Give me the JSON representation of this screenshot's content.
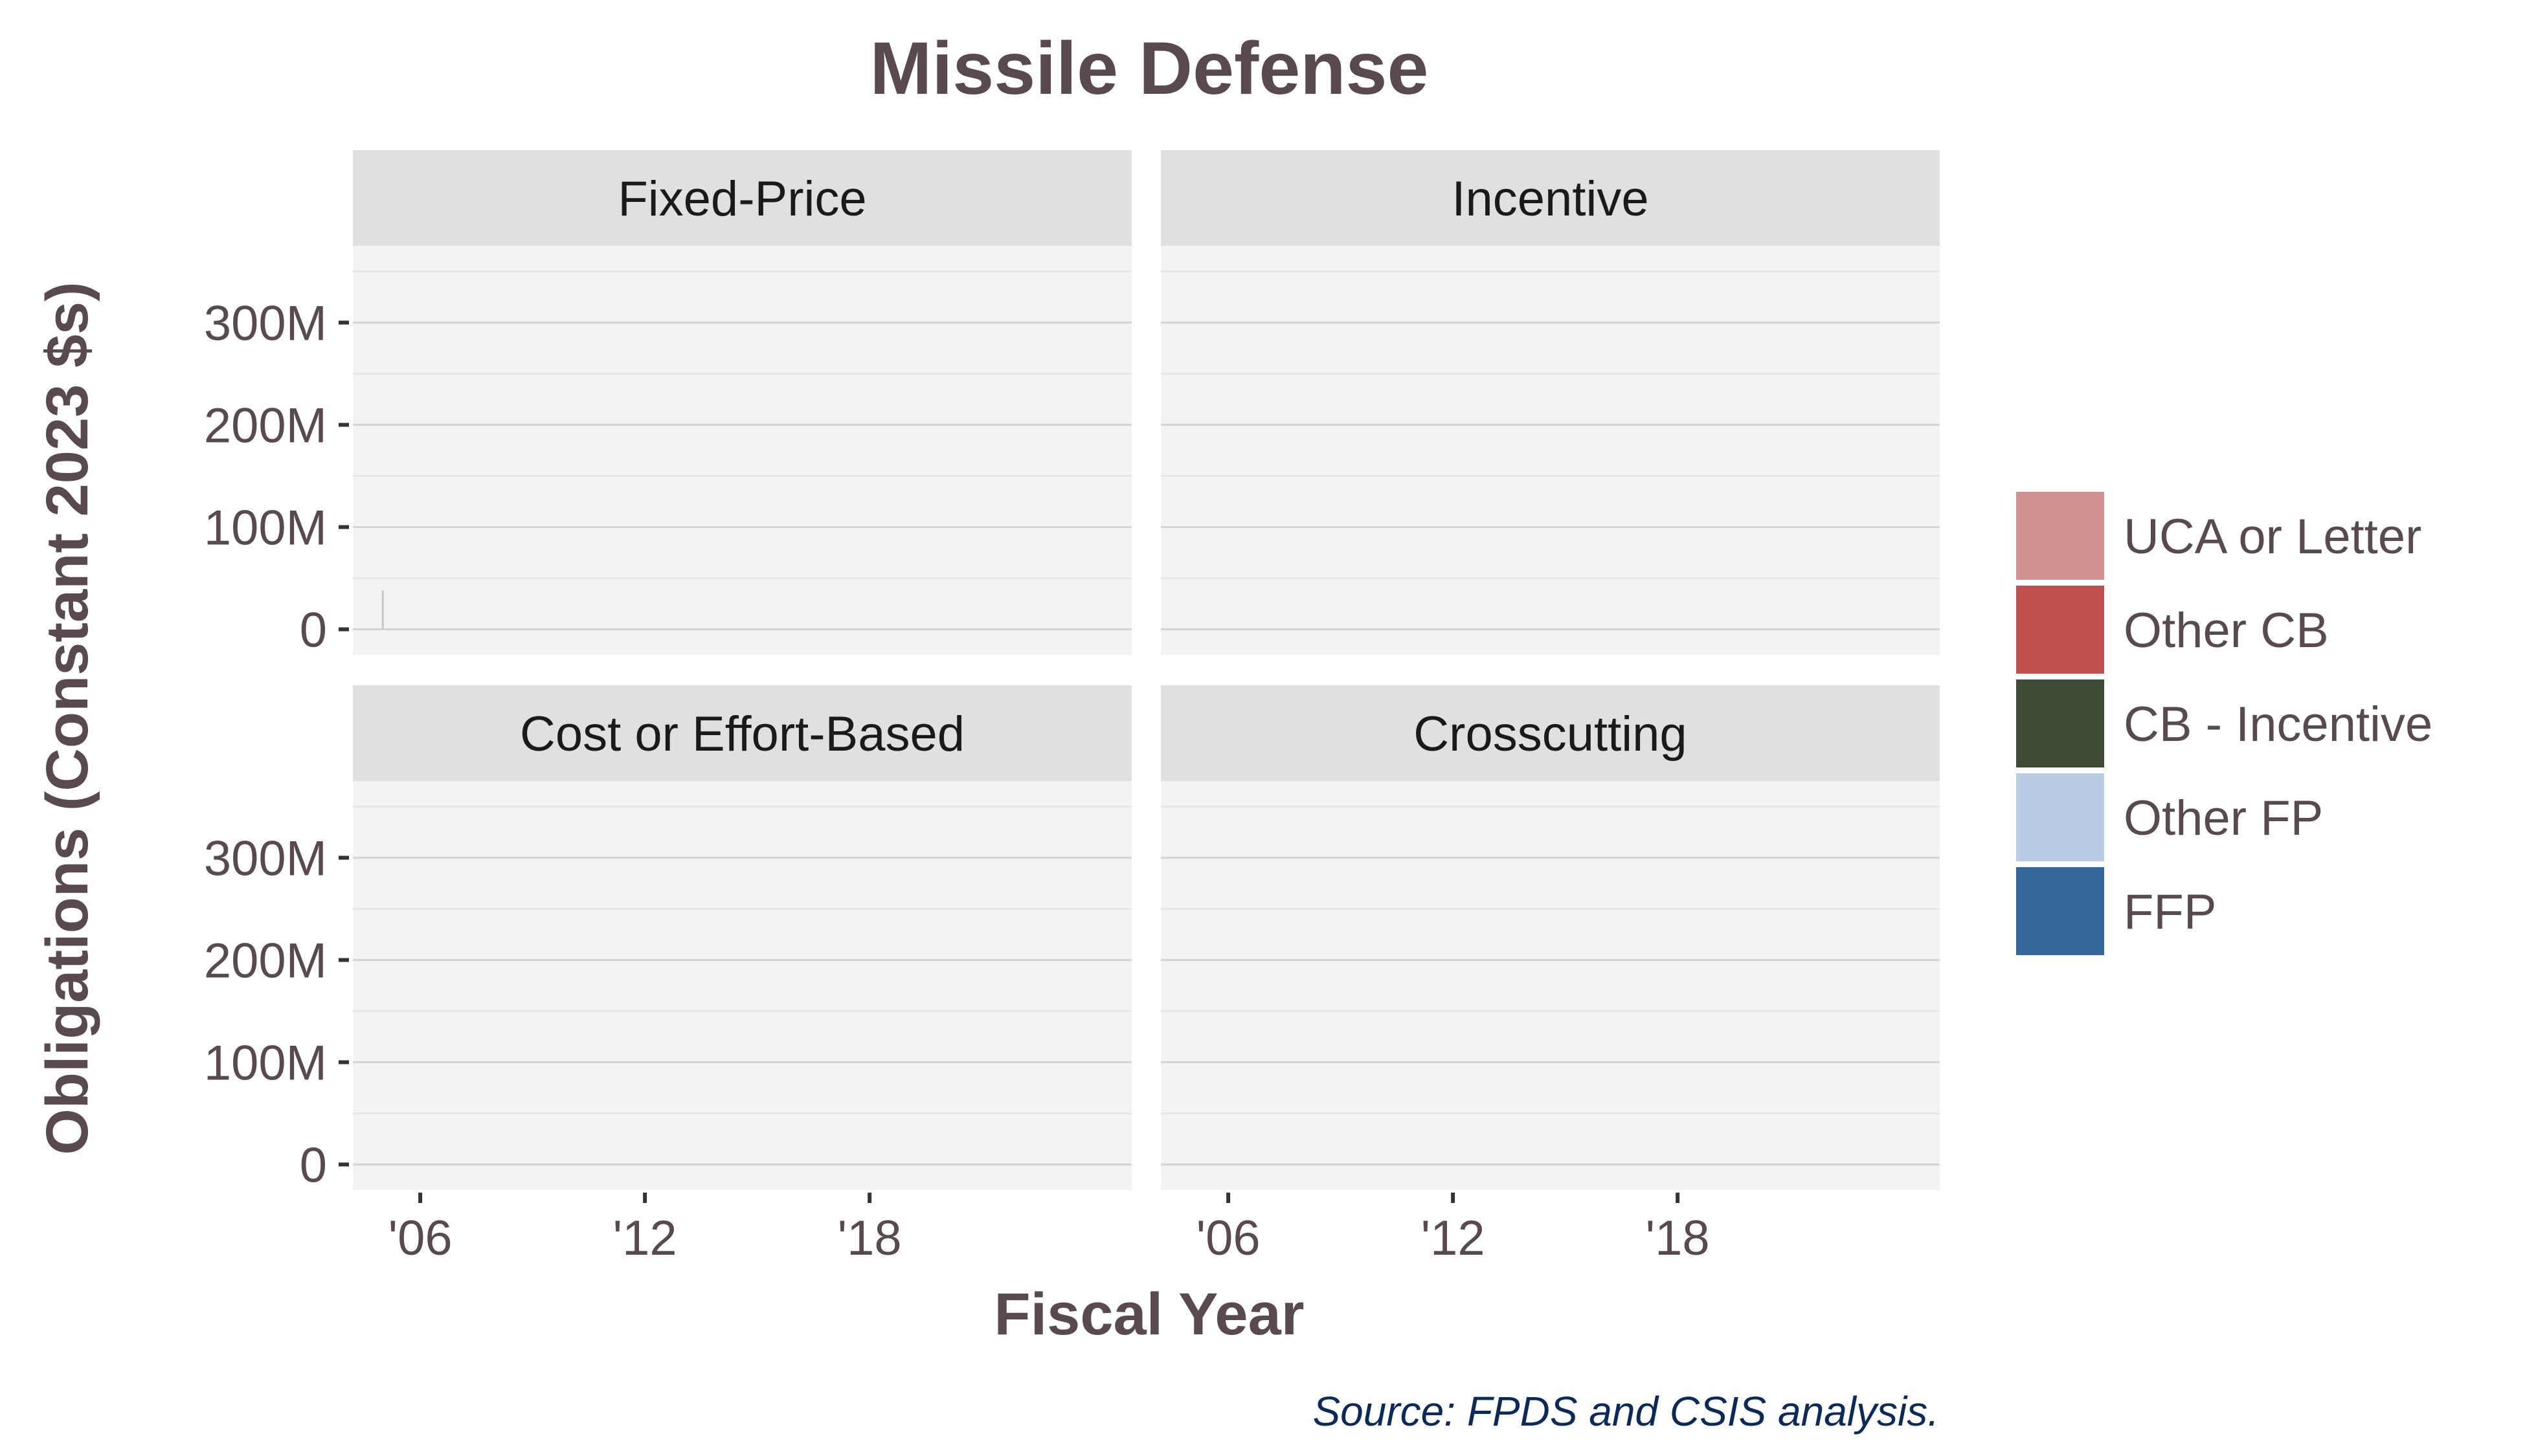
{
  "chart_data": {
    "type": "bar",
    "stacked": true,
    "title": "Missile Defense",
    "xlabel": "Fiscal Year",
    "ylabel": "Obligations (Constant 2023 $s)",
    "source": "Source: FPDS and CSIS analysis.",
    "x_ticks": [
      {
        "value": 2006,
        "label": "'06"
      },
      {
        "value": 2012,
        "label": "'12"
      },
      {
        "value": 2018,
        "label": "'18"
      }
    ],
    "y_ticks": [
      {
        "value": 0,
        "label": "0"
      },
      {
        "value": 100000000,
        "label": "100M"
      },
      {
        "value": 200000000,
        "label": "200M"
      },
      {
        "value": 300000000,
        "label": "300M"
      }
    ],
    "xlim": [
      2004.2,
      2025.0
    ],
    "ylim": [
      -25000000,
      375000000
    ],
    "grid": true,
    "legend_position": "right",
    "legend": [
      {
        "name": "UCA or Letter",
        "color": "#d09392"
      },
      {
        "name": "Other CB",
        "color": "#c0504d"
      },
      {
        "name": "CB - Incentive",
        "color": "#3d4a35"
      },
      {
        "name": "Other FP",
        "color": "#b8cce4"
      },
      {
        "name": "FFP",
        "color": "#336699"
      }
    ],
    "facets": [
      {
        "name": "Fixed-Price",
        "bars": [
          {
            "x": 2005,
            "series": "FFP",
            "value": 38000000
          }
        ]
      },
      {
        "name": "Incentive",
        "bars": []
      },
      {
        "name": "Cost or Effort-Based",
        "bars": []
      },
      {
        "name": "Crosscutting",
        "bars": []
      }
    ]
  }
}
